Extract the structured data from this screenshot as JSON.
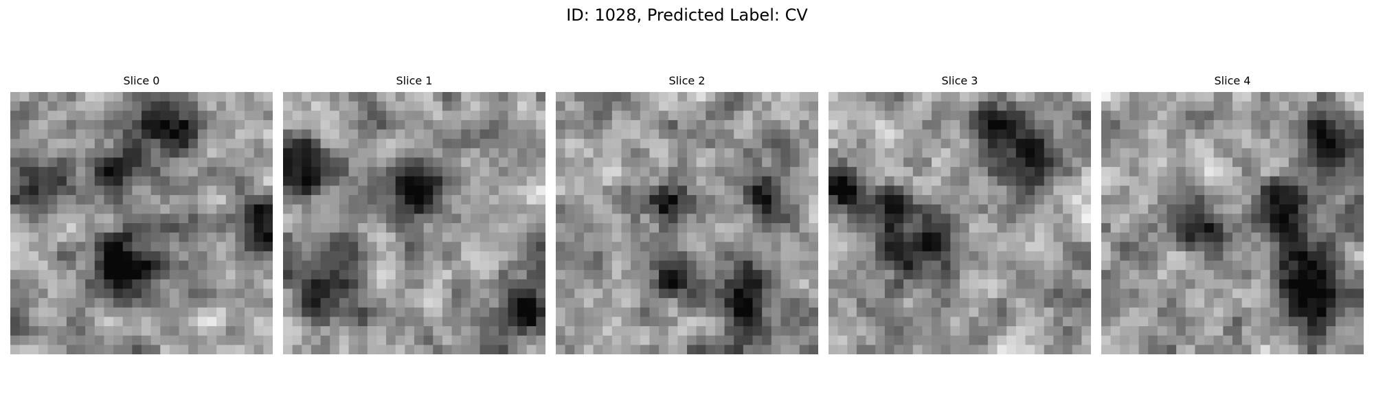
{
  "figure": {
    "title": "ID: 1028, Predicted Label: CV"
  },
  "panels": [
    {
      "title": "Slice 0"
    },
    {
      "title": "Slice 1"
    },
    {
      "title": "Slice 2"
    },
    {
      "title": "Slice 3"
    },
    {
      "title": "Slice 4"
    }
  ],
  "colormap": "grayscale"
}
